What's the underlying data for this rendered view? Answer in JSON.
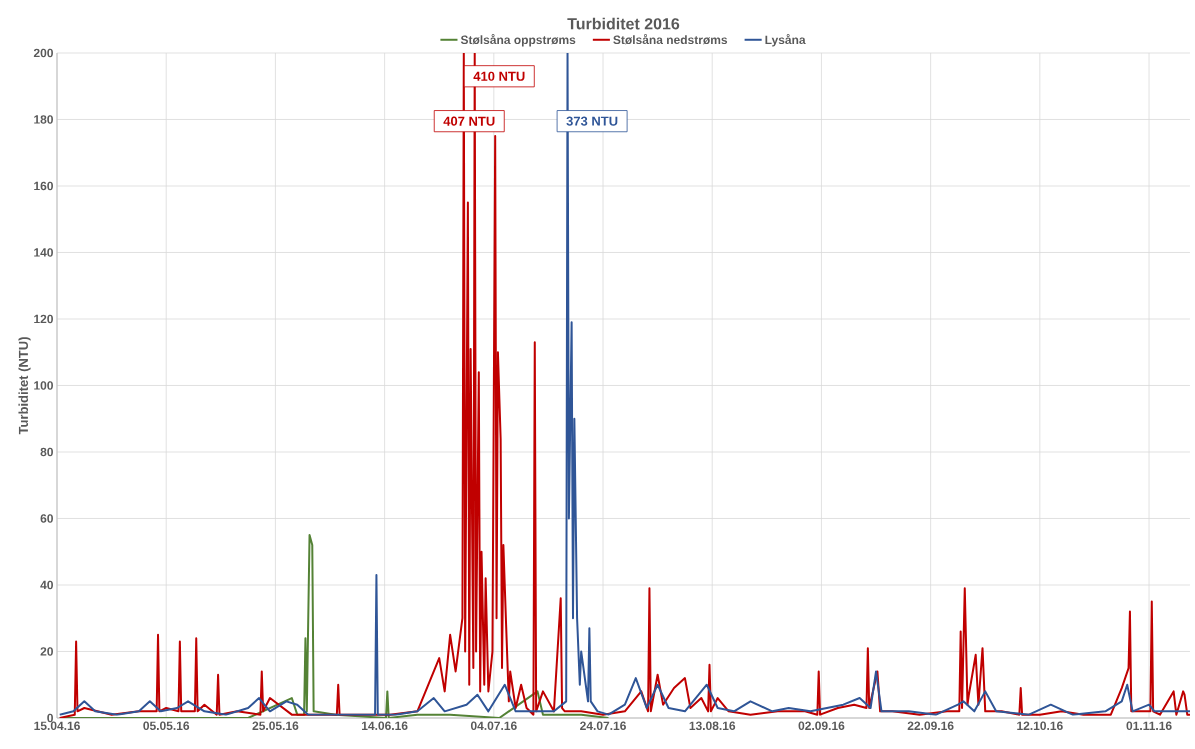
{
  "chart_data": {
    "type": "line",
    "title": "Turbiditet 2016",
    "ylabel": "Turbiditet (NTU)",
    "annotations": [
      "410 NTU",
      "407 NTU",
      "373 NTU"
    ],
    "xlim": [
      "2016-04-15",
      "2016-11-08T12:00"
    ],
    "xticks": [
      {
        "value": "2016-04-15",
        "label": "15.04.16"
      },
      {
        "value": "2016-05-05",
        "label": "05.05.16"
      },
      {
        "value": "2016-05-25",
        "label": "25.05.16"
      },
      {
        "value": "2016-06-14",
        "label": "14.06.16"
      },
      {
        "value": "2016-07-04",
        "label": "04.07.16"
      },
      {
        "value": "2016-07-24",
        "label": "24.07.16"
      },
      {
        "value": "2016-08-13",
        "label": "13.08.16"
      },
      {
        "value": "2016-09-02",
        "label": "02.09.16"
      },
      {
        "value": "2016-09-22",
        "label": "22.09.16"
      },
      {
        "value": "2016-10-12",
        "label": "12.10.16"
      },
      {
        "value": "2016-11-01",
        "label": "01.11.16"
      }
    ],
    "ylim": [
      0,
      200
    ],
    "yticks": [
      0,
      20,
      40,
      60,
      80,
      100,
      120,
      140,
      160,
      180,
      200
    ],
    "grid": true,
    "legend": "top",
    "marker": "none",
    "line_style": "solid",
    "series": [
      {
        "name": "Stølsåna oppstrøms",
        "color": "#548235",
        "x": [
          "2016-04-15T12:00",
          "2016-05-20",
          "2016-05-28",
          "2016-05-29",
          "2016-05-30T06:00",
          "2016-05-30T12:00",
          "2016-05-30T18:00",
          "2016-05-31T06:00",
          "2016-05-31T18:00",
          "2016-06-01",
          "2016-06-05",
          "2016-06-14T06:00",
          "2016-06-14T12:00",
          "2016-06-14T18:00",
          "2016-06-20",
          "2016-06-26",
          "2016-07-05",
          "2016-07-12",
          "2016-07-13",
          "2016-07-20",
          "2016-07-25"
        ],
        "values": [
          0,
          0,
          6,
          1,
          1,
          24,
          2,
          55,
          52,
          2,
          1,
          0,
          8,
          0,
          1,
          1,
          0,
          8,
          1,
          1,
          0
        ]
      },
      {
        "name": "Stølsåna nedstrøms",
        "color": "#c00000",
        "x": [
          "2016-04-15T12:00",
          "2016-04-18T06:00",
          "2016-04-18T12:00",
          "2016-04-18T18:00",
          "2016-04-20",
          "2016-04-25",
          "2016-04-30",
          "2016-05-03T06:00",
          "2016-05-03T12:00",
          "2016-05-03T18:00",
          "2016-05-05",
          "2016-05-07T06:00",
          "2016-05-07T12:00",
          "2016-05-07T18:00",
          "2016-05-10T06:00",
          "2016-05-10T12:00",
          "2016-05-10T18:00",
          "2016-05-12",
          "2016-05-14T06:00",
          "2016-05-14T12:00",
          "2016-05-14T18:00",
          "2016-05-18",
          "2016-05-22T06:00",
          "2016-05-22T12:00",
          "2016-05-22T18:00",
          "2016-05-24",
          "2016-05-28",
          "2016-06-02",
          "2016-06-05T06:00",
          "2016-06-05T12:00",
          "2016-06-05T18:00",
          "2016-06-10",
          "2016-06-15",
          "2016-06-20",
          "2016-06-24",
          "2016-06-25",
          "2016-06-26",
          "2016-06-27",
          "2016-06-28T06:00",
          "2016-06-28T12:00",
          "2016-06-28T18:00",
          "2016-06-29T06:00",
          "2016-06-29T12:00",
          "2016-06-29T18:00",
          "2016-06-30T06:00",
          "2016-06-30T12:00",
          "2016-06-30T18:00",
          "2016-07-01T06:00",
          "2016-07-01T12:00",
          "2016-07-01T18:00",
          "2016-07-02T06:00",
          "2016-07-02T12:00",
          "2016-07-03",
          "2016-07-03T18:00",
          "2016-07-04T06:00",
          "2016-07-04T12:00",
          "2016-07-04T18:00",
          "2016-07-05T06:00",
          "2016-07-05T12:00",
          "2016-07-05T18:00",
          "2016-07-06T06:00",
          "2016-07-06T18:00",
          "2016-07-07",
          "2016-07-08",
          "2016-07-09",
          "2016-07-10",
          "2016-07-11T06:00",
          "2016-07-11T12:00",
          "2016-07-11T18:00",
          "2016-07-13",
          "2016-07-15",
          "2016-07-16T06:00",
          "2016-07-16T12:00",
          "2016-07-17",
          "2016-07-20",
          "2016-07-24",
          "2016-07-28",
          "2016-07-31",
          "2016-08-01T06:00",
          "2016-08-01T12:00",
          "2016-08-01T18:00",
          "2016-08-03",
          "2016-08-04",
          "2016-08-06",
          "2016-08-08",
          "2016-08-09",
          "2016-08-11",
          "2016-08-12T06:00",
          "2016-08-12T12:00",
          "2016-08-12T18:00",
          "2016-08-14",
          "2016-08-16",
          "2016-08-20",
          "2016-08-25",
          "2016-08-30",
          "2016-09-01T06:00",
          "2016-09-01T12:00",
          "2016-09-01T18:00",
          "2016-09-05",
          "2016-09-08",
          "2016-09-10T06:00",
          "2016-09-10T12:00",
          "2016-09-10T18:00",
          "2016-09-12T06:00",
          "2016-09-12T18:00",
          "2016-09-15",
          "2016-09-20",
          "2016-09-25",
          "2016-09-27T06:00",
          "2016-09-27T12:00",
          "2016-09-27T18:00",
          "2016-09-28T06:00",
          "2016-09-28T18:00",
          "2016-09-29",
          "2016-09-30T06:00",
          "2016-09-30T18:00",
          "2016-10-01T12:00",
          "2016-10-02",
          "2016-10-05",
          "2016-10-08T06:00",
          "2016-10-08T12:00",
          "2016-10-08T18:00",
          "2016-10-12",
          "2016-10-16",
          "2016-10-20",
          "2016-10-25",
          "2016-10-27",
          "2016-10-28T06:00",
          "2016-10-28T12:00",
          "2016-10-28T18:00",
          "2016-10-30",
          "2016-11-01T06:00",
          "2016-11-01T12:00",
          "2016-11-01T18:00",
          "2016-11-03",
          "2016-11-05T12:00",
          "2016-11-06",
          "2016-11-07T06:00",
          "2016-11-07T12:00",
          "2016-11-08",
          "2016-11-08T12:00"
        ],
        "values": [
          0,
          1,
          23,
          2,
          3,
          1,
          2,
          2,
          25,
          2,
          3,
          2,
          23,
          2,
          2,
          24,
          2,
          4,
          1,
          13,
          1,
          2,
          1,
          14,
          2,
          6,
          1,
          1,
          1,
          10,
          1,
          1,
          1,
          2,
          18,
          8,
          25,
          14,
          30,
          200,
          20,
          155,
          10,
          111,
          15,
          200,
          20,
          104,
          8,
          50,
          10,
          42,
          8,
          20,
          175,
          30,
          110,
          84,
          15,
          52,
          28,
          5,
          14,
          3,
          10,
          3,
          1,
          113,
          2,
          8,
          2,
          36,
          3,
          2,
          2,
          1,
          2,
          8,
          2,
          39,
          2,
          13,
          4,
          9,
          12,
          3,
          6,
          2,
          16,
          2,
          6,
          2,
          1,
          2,
          2,
          1,
          14,
          1,
          3,
          4,
          3,
          21,
          3,
          14,
          2,
          2,
          1,
          2,
          2,
          26,
          3,
          39,
          4,
          7,
          19,
          4,
          21,
          2,
          2,
          1,
          9,
          1,
          1,
          2,
          1,
          1,
          9,
          15,
          32,
          2,
          2,
          2,
          35,
          2,
          1,
          8,
          1,
          8,
          7,
          1,
          1
        ]
      },
      {
        "name": "Lysåna",
        "color": "#2f5597",
        "x": [
          "2016-04-15T12:00",
          "2016-04-18",
          "2016-04-20",
          "2016-04-22",
          "2016-04-26",
          "2016-04-30",
          "2016-05-02",
          "2016-05-04",
          "2016-05-07",
          "2016-05-09",
          "2016-05-12",
          "2016-05-16",
          "2016-05-20",
          "2016-05-22",
          "2016-05-24",
          "2016-05-27",
          "2016-05-29",
          "2016-05-31",
          "2016-06-05",
          "2016-06-10",
          "2016-06-12T06:00",
          "2016-06-12T12:00",
          "2016-06-12T18:00",
          "2016-06-16",
          "2016-06-20",
          "2016-06-23",
          "2016-06-25",
          "2016-06-29",
          "2016-07-01",
          "2016-07-03",
          "2016-07-06",
          "2016-07-08",
          "2016-07-11",
          "2016-07-15",
          "2016-07-17T06:00",
          "2016-07-17T12:00",
          "2016-07-17T18:00",
          "2016-07-18T06:00",
          "2016-07-18T12:00",
          "2016-07-18T18:00",
          "2016-07-19T06:00",
          "2016-07-19T18:00",
          "2016-07-20",
          "2016-07-21T06:00",
          "2016-07-21T12:00",
          "2016-07-21T18:00",
          "2016-07-23",
          "2016-07-25",
          "2016-07-28",
          "2016-07-30",
          "2016-08-01",
          "2016-08-03",
          "2016-08-05",
          "2016-08-08",
          "2016-08-10",
          "2016-08-12",
          "2016-08-14",
          "2016-08-17",
          "2016-08-20",
          "2016-08-24",
          "2016-08-27",
          "2016-08-31",
          "2016-09-03",
          "2016-09-06",
          "2016-09-09",
          "2016-09-11",
          "2016-09-12",
          "2016-09-13",
          "2016-09-18",
          "2016-09-23",
          "2016-09-27",
          "2016-09-28",
          "2016-09-30",
          "2016-10-02",
          "2016-10-04",
          "2016-10-10",
          "2016-10-14",
          "2016-10-18",
          "2016-10-24",
          "2016-10-27",
          "2016-10-28",
          "2016-10-29",
          "2016-11-01",
          "2016-11-02",
          "2016-11-05",
          "2016-11-08T12:00"
        ],
        "values": [
          1,
          2,
          5,
          2,
          1,
          2,
          5,
          2,
          3,
          5,
          2,
          1,
          3,
          6,
          2,
          5,
          4,
          1,
          1,
          1,
          1,
          43,
          1,
          1,
          2,
          6,
          2,
          4,
          7,
          2,
          10,
          2,
          2,
          2,
          5,
          200,
          60,
          119,
          30,
          90,
          30,
          10,
          20,
          5,
          27,
          5,
          2,
          1,
          4,
          12,
          3,
          10,
          3,
          2,
          6,
          10,
          3,
          2,
          5,
          2,
          3,
          2,
          3,
          4,
          6,
          3,
          14,
          2,
          2,
          1,
          4,
          5,
          2,
          8,
          2,
          1,
          4,
          1,
          2,
          5,
          10,
          2,
          4,
          2,
          2,
          2
        ]
      }
    ]
  }
}
